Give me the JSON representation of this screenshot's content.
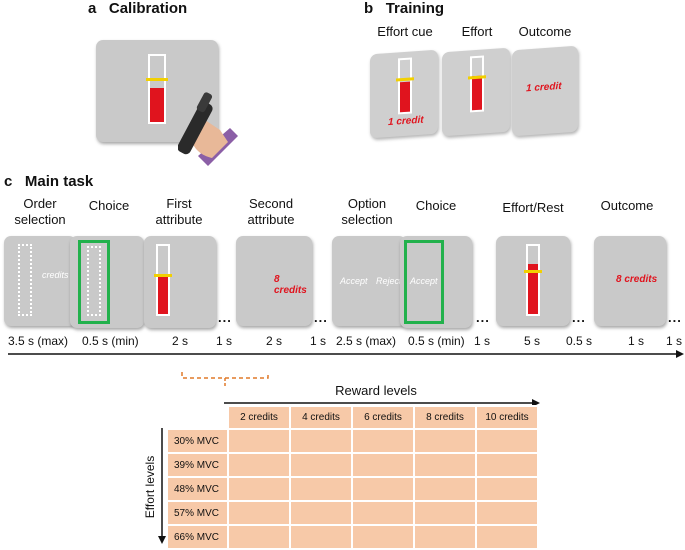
{
  "panel_a": {
    "letter": "a",
    "title": "Calibration"
  },
  "panel_b": {
    "letter": "b",
    "title": "Training",
    "stages": [
      "Effort cue",
      "Effort",
      "Outcome"
    ],
    "cue_text": "1 credit",
    "outcome_text": "1 credit"
  },
  "panel_c": {
    "letter": "c",
    "title": "Main task",
    "stages": [
      "Order selection",
      "Choice",
      "First attribute",
      "Second attribute",
      "Option selection",
      "Choice",
      "Effort/Rest",
      "Outcome"
    ],
    "screen_credits_text": "credits",
    "second_attr_text": "8 credits",
    "accept_text": "Accept",
    "reject_text": "Reject",
    "outcome_text": "8 credits",
    "timings": [
      "3.5 s (max)",
      "0.5 s (min)",
      "2 s",
      "1 s",
      "2 s",
      "1 s",
      "2.5 s (max)",
      "0.5 s (min)",
      "1 s",
      "5 s",
      "0.5 s",
      "1 s",
      "1 s"
    ],
    "ellipsis": "..."
  },
  "table": {
    "x_title": "Reward levels",
    "y_title": "Effort levels",
    "columns": [
      "2 credits",
      "4 credits",
      "6 credits",
      "8 credits",
      "10 credits"
    ],
    "rows": [
      "30% MVC",
      "39% MVC",
      "48% MVC",
      "57% MVC",
      "66% MVC"
    ]
  },
  "colors": {
    "bar_red": "#e0141e",
    "threshold_yellow": "#f2d000",
    "choice_green": "#22b14c",
    "table_fill": "#f7c9a8",
    "bracket_orange": "#e07a2a"
  }
}
